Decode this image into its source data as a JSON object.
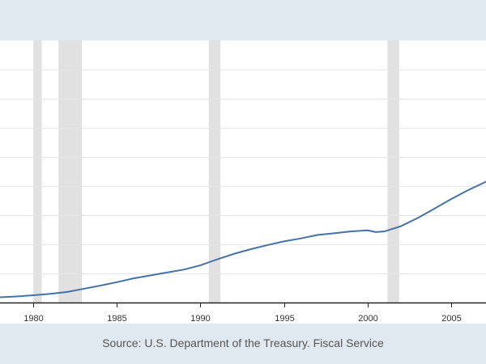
{
  "chart_data": {
    "type": "line",
    "title": "",
    "xlabel": "",
    "ylabel": "",
    "x_range": [
      1978,
      2007.1
    ],
    "y_range": [
      0,
      9
    ],
    "x_ticks": [
      1980,
      1985,
      1990,
      1995,
      2000,
      2005
    ],
    "x_tick_labels": [
      "1980",
      "1985",
      "1990",
      "1995",
      "2000",
      "2005"
    ],
    "gridlines": "horizontal",
    "y_grid_values": [
      1,
      2,
      3,
      4,
      5,
      6,
      7,
      8
    ],
    "recession_shading": [
      {
        "start": 1980.0,
        "end": 1980.5
      },
      {
        "start": 1981.5,
        "end": 1982.9
      },
      {
        "start": 1990.5,
        "end": 1991.2
      },
      {
        "start": 2001.2,
        "end": 2001.9
      }
    ],
    "series": [
      {
        "color": "#4572a7",
        "points": [
          [
            1978.0,
            0.18
          ],
          [
            1979.0,
            0.21
          ],
          [
            1980.0,
            0.25
          ],
          [
            1981.0,
            0.3
          ],
          [
            1982.0,
            0.36
          ],
          [
            1983.0,
            0.47
          ],
          [
            1984.0,
            0.58
          ],
          [
            1985.0,
            0.7
          ],
          [
            1986.0,
            0.83
          ],
          [
            1987.0,
            0.93
          ],
          [
            1988.0,
            1.03
          ],
          [
            1989.0,
            1.13
          ],
          [
            1990.0,
            1.28
          ],
          [
            1991.0,
            1.48
          ],
          [
            1992.0,
            1.67
          ],
          [
            1993.0,
            1.83
          ],
          [
            1994.0,
            1.97
          ],
          [
            1995.0,
            2.1
          ],
          [
            1996.0,
            2.2
          ],
          [
            1997.0,
            2.32
          ],
          [
            1998.0,
            2.38
          ],
          [
            1999.0,
            2.44
          ],
          [
            2000.0,
            2.48
          ],
          [
            2000.5,
            2.42
          ],
          [
            2001.0,
            2.44
          ],
          [
            2002.0,
            2.62
          ],
          [
            2003.0,
            2.9
          ],
          [
            2004.0,
            3.22
          ],
          [
            2005.0,
            3.55
          ],
          [
            2006.0,
            3.85
          ],
          [
            2007.1,
            4.15
          ]
        ]
      }
    ]
  },
  "source": {
    "text": "Source: U.S. Department of the Treasury. Fiscal Service"
  }
}
